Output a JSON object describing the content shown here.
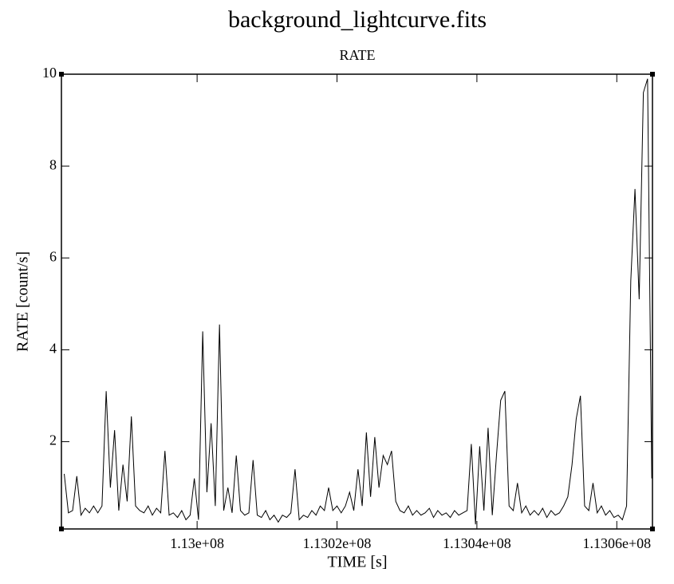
{
  "chart_data": {
    "type": "line",
    "title": "background_lightcurve.fits",
    "subtitle": "RATE",
    "x_label": "TIME [s]",
    "y_label": "RATE [count/s]",
    "color": "#000000",
    "xlim": [
      112980600,
      113065100
    ],
    "ylim": [
      0.1,
      10
    ],
    "xticks": [
      {
        "value": 113000000,
        "label": "1.13e+08"
      },
      {
        "value": 113020000,
        "label": "1.1302e+08"
      },
      {
        "value": 113040000,
        "label": "1.1304e+08"
      },
      {
        "value": 113060000,
        "label": "1.1306e+08"
      }
    ],
    "yticks": [
      2,
      4,
      6,
      8,
      10
    ],
    "x": [
      112981000,
      112981600,
      112982200,
      112982800,
      112983400,
      112984000,
      112984600,
      112985200,
      112985800,
      112986400,
      112987000,
      112987600,
      112988200,
      112988800,
      112989400,
      112990000,
      112990600,
      112991200,
      112991800,
      112992400,
      112993000,
      112993600,
      112994200,
      112994800,
      112995400,
      112996000,
      112996600,
      112997200,
      112997800,
      112998400,
      112999000,
      112999600,
      113000200,
      113000800,
      113001400,
      113002000,
      113002600,
      113003200,
      113003800,
      113004400,
      113005000,
      113005600,
      113006200,
      113006800,
      113007400,
      113008000,
      113008600,
      113009200,
      113009800,
      113010400,
      113011000,
      113011600,
      113012200,
      113012800,
      113013400,
      113014000,
      113014600,
      113015200,
      113015800,
      113016400,
      113017000,
      113017600,
      113018200,
      113018800,
      113019400,
      113020000,
      113020600,
      113021200,
      113021800,
      113022400,
      113023000,
      113023600,
      113024200,
      113024800,
      113025400,
      113026000,
      113026600,
      113027200,
      113027800,
      113028400,
      113029000,
      113029600,
      113030200,
      113030800,
      113031400,
      113032000,
      113032600,
      113033200,
      113033800,
      113034400,
      113035000,
      113035600,
      113036200,
      113036800,
      113037400,
      113038000,
      113038600,
      113039200,
      113039800,
      113040400,
      113041000,
      113041600,
      113042200,
      113042800,
      113043400,
      113044000,
      113044600,
      113045200,
      113045800,
      113046400,
      113047000,
      113047600,
      113048200,
      113048800,
      113049400,
      113050000,
      113050600,
      113051200,
      113051800,
      113052400,
      113053000,
      113053600,
      113054200,
      113054800,
      113055400,
      113056000,
      113056600,
      113057200,
      113057800,
      113058400,
      113059000,
      113059600,
      113060200,
      113060800,
      113061400,
      113062000,
      113062600,
      113063200,
      113063800,
      113064400,
      113065000
    ],
    "values": [
      1.3,
      0.45,
      0.5,
      1.25,
      0.4,
      0.55,
      0.45,
      0.6,
      0.45,
      0.6,
      3.1,
      1.0,
      2.25,
      0.5,
      1.5,
      0.7,
      2.55,
      0.6,
      0.5,
      0.45,
      0.6,
      0.4,
      0.55,
      0.45,
      1.8,
      0.4,
      0.45,
      0.35,
      0.5,
      0.3,
      0.4,
      1.2,
      0.3,
      4.4,
      0.9,
      2.4,
      0.6,
      4.55,
      0.5,
      1.0,
      0.45,
      1.7,
      0.5,
      0.4,
      0.45,
      1.6,
      0.4,
      0.35,
      0.5,
      0.3,
      0.4,
      0.25,
      0.4,
      0.35,
      0.45,
      1.4,
      0.3,
      0.4,
      0.35,
      0.5,
      0.4,
      0.6,
      0.5,
      1.0,
      0.5,
      0.6,
      0.45,
      0.6,
      0.9,
      0.5,
      1.4,
      0.6,
      2.2,
      0.8,
      2.1,
      1.0,
      1.7,
      1.5,
      1.8,
      0.7,
      0.5,
      0.45,
      0.6,
      0.4,
      0.5,
      0.4,
      0.45,
      0.55,
      0.35,
      0.5,
      0.4,
      0.45,
      0.35,
      0.5,
      0.4,
      0.45,
      0.5,
      1.95,
      0.2,
      1.9,
      0.5,
      2.3,
      0.4,
      1.7,
      2.9,
      3.1,
      0.6,
      0.5,
      1.1,
      0.45,
      0.6,
      0.4,
      0.5,
      0.4,
      0.55,
      0.35,
      0.5,
      0.4,
      0.45,
      0.6,
      0.8,
      1.5,
      2.5,
      3.0,
      0.6,
      0.5,
      1.1,
      0.45,
      0.6,
      0.4,
      0.5,
      0.35,
      0.4,
      0.3,
      0.6,
      5.5,
      7.5,
      5.1,
      9.6,
      9.9,
      1.2
    ]
  }
}
